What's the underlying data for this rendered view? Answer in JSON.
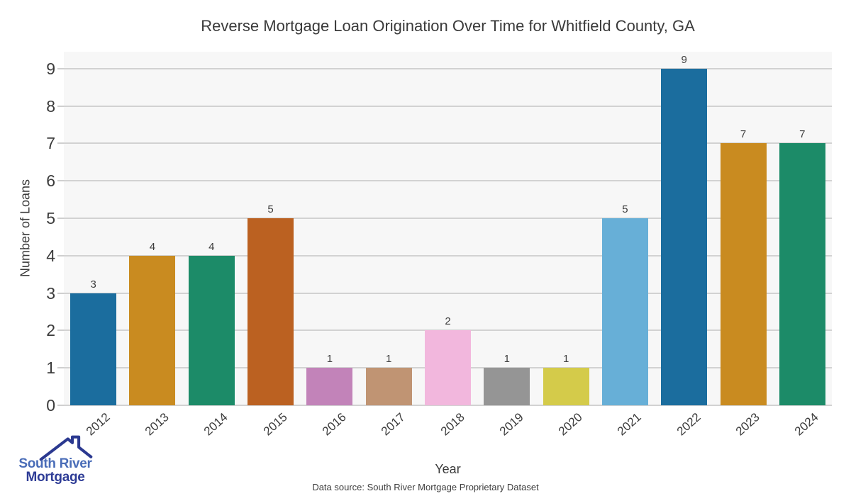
{
  "chart_data": {
    "type": "bar",
    "title": "Reverse Mortgage Loan Origination Over Time for Whitfield County, GA",
    "xlabel": "Year",
    "ylabel": "Number of Loans",
    "categories": [
      "2012",
      "2013",
      "2014",
      "2015",
      "2016",
      "2017",
      "2018",
      "2019",
      "2020",
      "2021",
      "2022",
      "2023",
      "2024"
    ],
    "values": [
      3,
      4,
      4,
      5,
      1,
      1,
      2,
      1,
      1,
      5,
      9,
      7,
      7
    ],
    "bar_colors": [
      "#1b6d9e",
      "#c98b20",
      "#1c8b68",
      "#bb6121",
      "#c283b9",
      "#c09473",
      "#f2b7dd",
      "#959595",
      "#d4cb4a",
      "#67afd7",
      "#1b6d9e",
      "#c98b20",
      "#1c8b68"
    ],
    "value_labels": [
      3,
      4,
      4,
      5,
      1,
      1,
      2,
      1,
      1,
      5,
      9,
      7,
      7
    ],
    "yticks": [
      0,
      1,
      2,
      3,
      4,
      5,
      6,
      7,
      8,
      9
    ],
    "ylim": [
      0,
      9.45
    ],
    "grid": "horizontal",
    "legend": "none",
    "plot_background": "#f7f7f7",
    "gridline_color": "#d2d2d2"
  },
  "caption": "Data source: South River Mortgage Proprietary Dataset",
  "logo": {
    "line1": "South River",
    "line2": "Mortgage",
    "line1_color": "#4a6db8",
    "line2_color": "#2e3c96",
    "roof_color": "#2b3990"
  },
  "text_color": "#3b3b3b"
}
